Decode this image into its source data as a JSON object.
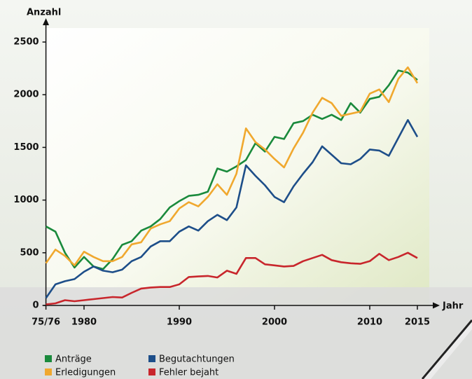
{
  "chart_data": {
    "type": "line",
    "ylabel": "Anzahl",
    "xlabel": "Jahr",
    "x": [
      1976,
      1977,
      1978,
      1979,
      1980,
      1981,
      1982,
      1983,
      1984,
      1985,
      1986,
      1987,
      1988,
      1989,
      1990,
      1991,
      1992,
      1993,
      1994,
      1995,
      1996,
      1997,
      1998,
      1999,
      2000,
      2001,
      2002,
      2003,
      2004,
      2005,
      2006,
      2007,
      2008,
      2009,
      2010,
      2011,
      2012,
      2013,
      2014,
      2015
    ],
    "series": [
      {
        "name": "Anträge",
        "color": "#1a8a3c",
        "values": [
          750,
          700,
          500,
          360,
          460,
          370,
          345,
          440,
          575,
          610,
          710,
          750,
          820,
          930,
          990,
          1040,
          1050,
          1080,
          1300,
          1270,
          1320,
          1380,
          1540,
          1460,
          1600,
          1580,
          1730,
          1750,
          1810,
          1770,
          1810,
          1760,
          1920,
          1830,
          1960,
          1980,
          2090,
          2230,
          2210,
          2140
        ]
      },
      {
        "name": "Erledigungen",
        "color": "#f0a82e",
        "values": [
          400,
          530,
          470,
          380,
          510,
          460,
          420,
          420,
          460,
          580,
          600,
          730,
          770,
          800,
          920,
          980,
          940,
          1030,
          1150,
          1050,
          1250,
          1680,
          1550,
          1480,
          1390,
          1310,
          1490,
          1640,
          1830,
          1970,
          1920,
          1800,
          1820,
          1840,
          2010,
          2050,
          1930,
          2150,
          2260,
          2110
        ]
      },
      {
        "name": "Begutachtungen",
        "color": "#1d4e89",
        "values": [
          70,
          200,
          230,
          250,
          320,
          370,
          330,
          315,
          340,
          420,
          460,
          560,
          610,
          610,
          700,
          750,
          710,
          800,
          860,
          810,
          930,
          1330,
          1230,
          1140,
          1030,
          980,
          1130,
          1250,
          1360,
          1510,
          1430,
          1350,
          1340,
          1390,
          1480,
          1470,
          1420,
          1590,
          1760,
          1600
        ]
      },
      {
        "name": "Fehler bejaht",
        "color": "#c8262c",
        "values": [
          10,
          20,
          50,
          40,
          50,
          60,
          70,
          80,
          75,
          120,
          160,
          170,
          175,
          175,
          200,
          270,
          275,
          280,
          265,
          330,
          300,
          450,
          450,
          390,
          380,
          370,
          375,
          420,
          450,
          480,
          430,
          410,
          400,
          395,
          420,
          490,
          430,
          460,
          500,
          450
        ]
      }
    ],
    "xlim": [
      1976,
      2017
    ],
    "xticks": [
      {
        "value": 1976,
        "label": "75/76"
      },
      1980,
      1990,
      2000,
      2010,
      2015
    ],
    "ylim": [
      0,
      2500
    ],
    "yticks": [
      0,
      500,
      1000,
      1500,
      2000,
      2500
    ],
    "grid": false,
    "legend": "bottom"
  }
}
